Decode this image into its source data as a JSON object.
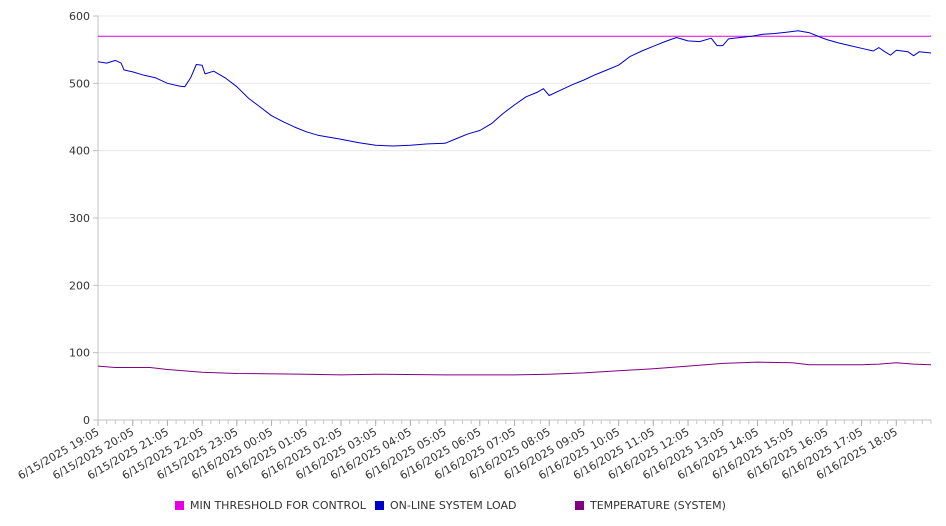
{
  "chart_data": {
    "type": "line",
    "ylim": [
      0,
      600
    ],
    "yticks": [
      0,
      100,
      200,
      300,
      400,
      500,
      600
    ],
    "x_start": "6/15/2025 19:05",
    "x_end": "6/16/2025 19:05",
    "x_ticks": [
      "6/15/2025 19:05",
      "6/15/2025 20:05",
      "6/15/2025 21:05",
      "6/15/2025 22:05",
      "6/15/2025 23:05",
      "6/16/2025 00:05",
      "6/16/2025 01:05",
      "6/16/2025 02:05",
      "6/16/2025 03:05",
      "6/16/2025 04:05",
      "6/16/2025 05:05",
      "6/16/2025 06:05",
      "6/16/2025 07:05",
      "6/16/2025 08:05",
      "6/16/2025 09:05",
      "6/16/2025 10:05",
      "6/16/2025 11:05",
      "6/16/2025 12:05",
      "6/16/2025 13:05",
      "6/16/2025 14:05",
      "6/16/2025 15:05",
      "6/16/2025 16:05",
      "6/16/2025 17:05",
      "6/16/2025 18:05"
    ],
    "legend_position": "bottom",
    "grid": true,
    "series": [
      {
        "name": "MIN THRESHOLD FOR CONTROL",
        "color": "#e400e4",
        "points": [
          [
            "6/15/2025 19:05",
            570
          ],
          [
            "6/16/2025 19:05",
            570
          ]
        ]
      },
      {
        "name": "ON-LINE SYSTEM LOAD",
        "color": "#0000cc",
        "points": [
          [
            "6/15/2025 19:05",
            532
          ],
          [
            "6/15/2025 19:20",
            530
          ],
          [
            "6/15/2025 19:35",
            534
          ],
          [
            "6/15/2025 19:45",
            530
          ],
          [
            "6/15/2025 19:50",
            520
          ],
          [
            "6/15/2025 20:05",
            517
          ],
          [
            "6/15/2025 20:25",
            512
          ],
          [
            "6/15/2025 20:45",
            508
          ],
          [
            "6/15/2025 21:05",
            500
          ],
          [
            "6/15/2025 21:25",
            496
          ],
          [
            "6/15/2025 21:35",
            495
          ],
          [
            "6/15/2025 21:45",
            508
          ],
          [
            "6/15/2025 21:55",
            528
          ],
          [
            "6/15/2025 22:05",
            527
          ],
          [
            "6/15/2025 22:10",
            514
          ],
          [
            "6/15/2025 22:25",
            518
          ],
          [
            "6/15/2025 22:45",
            508
          ],
          [
            "6/15/2025 23:05",
            495
          ],
          [
            "6/15/2025 23:25",
            478
          ],
          [
            "6/15/2025 23:45",
            465
          ],
          [
            "6/16/2025 00:05",
            452
          ],
          [
            "6/16/2025 00:25",
            443
          ],
          [
            "6/16/2025 00:45",
            435
          ],
          [
            "6/16/2025 01:05",
            428
          ],
          [
            "6/16/2025 01:25",
            423
          ],
          [
            "6/16/2025 01:45",
            420
          ],
          [
            "6/16/2025 02:05",
            417
          ],
          [
            "6/16/2025 02:35",
            412
          ],
          [
            "6/16/2025 03:05",
            408
          ],
          [
            "6/16/2025 03:35",
            407
          ],
          [
            "6/16/2025 04:05",
            408
          ],
          [
            "6/16/2025 04:35",
            410
          ],
          [
            "6/16/2025 05:05",
            411
          ],
          [
            "6/16/2025 05:25",
            418
          ],
          [
            "6/16/2025 05:45",
            425
          ],
          [
            "6/16/2025 06:05",
            430
          ],
          [
            "6/16/2025 06:25",
            440
          ],
          [
            "6/16/2025 06:45",
            455
          ],
          [
            "6/16/2025 07:05",
            468
          ],
          [
            "6/16/2025 07:25",
            480
          ],
          [
            "6/16/2025 07:45",
            487
          ],
          [
            "6/16/2025 07:55",
            492
          ],
          [
            "6/16/2025 08:05",
            482
          ],
          [
            "6/16/2025 08:25",
            490
          ],
          [
            "6/16/2025 08:45",
            498
          ],
          [
            "6/16/2025 09:05",
            505
          ],
          [
            "6/16/2025 09:25",
            513
          ],
          [
            "6/16/2025 09:45",
            520
          ],
          [
            "6/16/2025 10:05",
            527
          ],
          [
            "6/16/2025 10:25",
            540
          ],
          [
            "6/16/2025 10:45",
            548
          ],
          [
            "6/16/2025 11:05",
            555
          ],
          [
            "6/16/2025 11:25",
            562
          ],
          [
            "6/16/2025 11:45",
            568
          ],
          [
            "6/16/2025 12:05",
            563
          ],
          [
            "6/16/2025 12:25",
            562
          ],
          [
            "6/16/2025 12:45",
            567
          ],
          [
            "6/16/2025 12:55",
            556
          ],
          [
            "6/16/2025 13:05",
            556
          ],
          [
            "6/16/2025 13:15",
            566
          ],
          [
            "6/16/2025 13:35",
            568
          ],
          [
            "6/16/2025 13:55",
            570
          ],
          [
            "6/16/2025 14:15",
            573
          ],
          [
            "6/16/2025 14:35",
            574
          ],
          [
            "6/16/2025 14:55",
            576
          ],
          [
            "6/16/2025 15:15",
            578
          ],
          [
            "6/16/2025 15:35",
            575
          ],
          [
            "6/16/2025 15:55",
            568
          ],
          [
            "6/16/2025 16:05",
            565
          ],
          [
            "6/16/2025 16:25",
            560
          ],
          [
            "6/16/2025 16:45",
            556
          ],
          [
            "6/16/2025 17:05",
            552
          ],
          [
            "6/16/2025 17:25",
            548
          ],
          [
            "6/16/2025 17:35",
            553
          ],
          [
            "6/16/2025 17:45",
            547
          ],
          [
            "6/16/2025 17:55",
            542
          ],
          [
            "6/16/2025 18:05",
            549
          ],
          [
            "6/16/2025 18:25",
            547
          ],
          [
            "6/16/2025 18:35",
            541
          ],
          [
            "6/16/2025 18:45",
            547
          ],
          [
            "6/16/2025 19:05",
            545
          ]
        ]
      },
      {
        "name": "TEMPERATURE (SYSTEM)",
        "color": "#800080",
        "points": [
          [
            "6/15/2025 19:05",
            80
          ],
          [
            "6/15/2025 19:35",
            78
          ],
          [
            "6/15/2025 20:35",
            78
          ],
          [
            "6/15/2025 21:05",
            75
          ],
          [
            "6/15/2025 22:05",
            71
          ],
          [
            "6/15/2025 23:05",
            69
          ],
          [
            "6/16/2025 01:05",
            68
          ],
          [
            "6/16/2025 02:05",
            67
          ],
          [
            "6/16/2025 03:05",
            68
          ],
          [
            "6/16/2025 05:05",
            67
          ],
          [
            "6/16/2025 07:05",
            67
          ],
          [
            "6/16/2025 08:05",
            68
          ],
          [
            "6/16/2025 09:05",
            70
          ],
          [
            "6/16/2025 10:05",
            73
          ],
          [
            "6/16/2025 11:05",
            76
          ],
          [
            "6/16/2025 12:05",
            80
          ],
          [
            "6/16/2025 13:05",
            84
          ],
          [
            "6/16/2025 14:05",
            86
          ],
          [
            "6/16/2025 15:05",
            85
          ],
          [
            "6/16/2025 15:35",
            82
          ],
          [
            "6/16/2025 16:05",
            82
          ],
          [
            "6/16/2025 17:05",
            82
          ],
          [
            "6/16/2025 17:35",
            83
          ],
          [
            "6/16/2025 18:05",
            85
          ],
          [
            "6/16/2025 18:35",
            83
          ],
          [
            "6/16/2025 19:05",
            82
          ]
        ]
      }
    ]
  }
}
